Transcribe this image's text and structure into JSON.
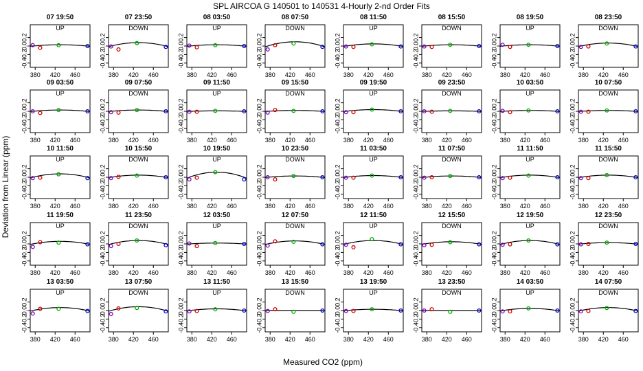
{
  "title": "SPL   AIRCOA G   140501 to 140531   4-Hourly 2-nd Order Fits",
  "colors": {
    "low": "#0000cc",
    "low2": "#8000c0",
    "mid": "#cc0000",
    "center": "#00aa00",
    "high": "#0000cc",
    "curve": "#000000"
  },
  "chart_data": {
    "type": "scatter",
    "title": "SPL   AIRCOA G   140501 to 140531   4-Hourly 2-nd Order Fits",
    "xlabel": "Measured CO2 (ppm)",
    "ylabel": "Deviation from Linear (ppm)",
    "xlim": [
      370,
      490
    ],
    "ylim": [
      -0.5,
      0.5
    ],
    "xticks": [
      "380",
      "420",
      "460"
    ],
    "yticks": [
      "0.2",
      "0.0",
      "-0.2",
      "-0.4"
    ],
    "ytick_values": [
      0.2,
      0.0,
      -0.2,
      -0.4
    ],
    "xtick_values": [
      380,
      420,
      460
    ],
    "x_standards": [
      375,
      390,
      427,
      485
    ],
    "panels": [
      {
        "label": "07 19:50",
        "dir": "UP",
        "y": [
          0.02,
          -0.04,
          0.02,
          0.0
        ],
        "c": 0.03
      },
      {
        "label": "07 23:50",
        "dir": "DOWN",
        "y": [
          -0.01,
          -0.08,
          0.07,
          -0.02
        ],
        "c": 0.08
      },
      {
        "label": "08 03:50",
        "dir": "UP",
        "y": [
          0.01,
          -0.03,
          0.02,
          0.0
        ],
        "c": 0.03
      },
      {
        "label": "08 07:50",
        "dir": "DOWN",
        "y": [
          -0.08,
          0.02,
          0.06,
          -0.02
        ],
        "c": 0.1
      },
      {
        "label": "08 11:50",
        "dir": "UP",
        "y": [
          -0.01,
          -0.02,
          0.04,
          -0.01
        ],
        "c": 0.05
      },
      {
        "label": "08 15:50",
        "dir": "DOWN",
        "y": [
          -0.01,
          -0.02,
          0.03,
          0.0
        ],
        "c": 0.03
      },
      {
        "label": "08 19:50",
        "dir": "UP",
        "y": [
          0.03,
          -0.02,
          0.03,
          0.0
        ],
        "c": 0.03
      },
      {
        "label": "08 23:50",
        "dir": "DOWN",
        "y": [
          -0.02,
          -0.01,
          0.06,
          -0.01
        ],
        "c": 0.07
      },
      {
        "label": "09 03:50",
        "dir": "UP",
        "y": [
          0.0,
          -0.04,
          0.03,
          0.0
        ],
        "c": 0.03
      },
      {
        "label": "09 07:50",
        "dir": "DOWN",
        "y": [
          -0.02,
          -0.03,
          0.03,
          0.0
        ],
        "c": 0.03
      },
      {
        "label": "09 11:50",
        "dir": "UP",
        "y": [
          -0.01,
          -0.01,
          0.01,
          0.0
        ],
        "c": 0.01
      },
      {
        "label": "09 15:50",
        "dir": "DOWN",
        "y": [
          -0.03,
          0.03,
          0.01,
          0.0
        ],
        "c": 0.02
      },
      {
        "label": "09 19:50",
        "dir": "UP",
        "y": [
          -0.02,
          -0.02,
          0.04,
          0.0
        ],
        "c": 0.04
      },
      {
        "label": "09 23:50",
        "dir": "DOWN",
        "y": [
          0.0,
          -0.01,
          0.01,
          0.0
        ],
        "c": 0.01
      },
      {
        "label": "10 03:50",
        "dir": "UP",
        "y": [
          0.01,
          -0.02,
          0.02,
          0.0
        ],
        "c": 0.02
      },
      {
        "label": "10 07:50",
        "dir": "DOWN",
        "y": [
          -0.01,
          -0.01,
          0.02,
          0.0
        ],
        "c": 0.02
      },
      {
        "label": "10 11:50",
        "dir": "UP",
        "y": [
          -0.02,
          -0.01,
          0.07,
          -0.02
        ],
        "c": 0.08
      },
      {
        "label": "10 15:50",
        "dir": "DOWN",
        "y": [
          -0.02,
          0.01,
          0.04,
          0.0
        ],
        "c": 0.05
      },
      {
        "label": "10 19:50",
        "dir": "UP",
        "y": [
          -0.05,
          -0.01,
          0.12,
          -0.05
        ],
        "c": 0.12
      },
      {
        "label": "10 23:50",
        "dir": "DOWN",
        "y": [
          0.0,
          -0.05,
          0.03,
          0.0
        ],
        "c": 0.03
      },
      {
        "label": "11 03:50",
        "dir": "UP",
        "y": [
          -0.01,
          -0.01,
          0.04,
          0.0
        ],
        "c": 0.04
      },
      {
        "label": "11 07:50",
        "dir": "DOWN",
        "y": [
          -0.01,
          0.0,
          0.03,
          0.0
        ],
        "c": 0.03
      },
      {
        "label": "11 11:50",
        "dir": "UP",
        "y": [
          -0.02,
          -0.01,
          0.04,
          0.0
        ],
        "c": 0.05
      },
      {
        "label": "11 15:50",
        "dir": "DOWN",
        "y": [
          -0.02,
          -0.02,
          0.05,
          0.0
        ],
        "c": 0.05
      },
      {
        "label": "11 19:50",
        "dir": "UP",
        "y": [
          -0.07,
          0.04,
          0.03,
          -0.01
        ],
        "c": 0.06
      },
      {
        "label": "11 23:50",
        "dir": "DOWN",
        "y": [
          -0.05,
          0.0,
          0.08,
          -0.03
        ],
        "c": 0.08
      },
      {
        "label": "12 03:50",
        "dir": "UP",
        "y": [
          0.01,
          -0.05,
          0.02,
          0.0
        ],
        "c": 0.02
      },
      {
        "label": "12 07:50",
        "dir": "DOWN",
        "y": [
          -0.04,
          0.06,
          0.05,
          -0.01
        ],
        "c": 0.07
      },
      {
        "label": "12 11:50",
        "dir": "UP",
        "y": [
          -0.02,
          -0.08,
          0.11,
          -0.01
        ],
        "c": 0.08
      },
      {
        "label": "12 15:50",
        "dir": "DOWN",
        "y": [
          -0.03,
          -0.02,
          0.04,
          -0.01
        ],
        "c": 0.05
      },
      {
        "label": "12 19:50",
        "dir": "UP",
        "y": [
          -0.02,
          -0.01,
          0.08,
          -0.01
        ],
        "c": 0.08
      },
      {
        "label": "12 23:50",
        "dir": "DOWN",
        "y": [
          -0.01,
          0.0,
          0.03,
          0.0
        ],
        "c": 0.03
      },
      {
        "label": "13 03:50",
        "dir": "UP",
        "y": [
          -0.07,
          0.04,
          0.04,
          -0.01
        ],
        "c": 0.07
      },
      {
        "label": "13 07:50",
        "dir": "DOWN",
        "y": [
          -0.08,
          0.05,
          0.06,
          -0.02
        ],
        "c": 0.09
      },
      {
        "label": "13 11:50",
        "dir": "UP",
        "y": [
          -0.02,
          -0.01,
          0.03,
          0.0
        ],
        "c": 0.04
      },
      {
        "label": "13 15:50",
        "dir": "DOWN",
        "y": [
          -0.01,
          0.03,
          -0.03,
          0.0
        ],
        "c": 0.0
      },
      {
        "label": "13 19:50",
        "dir": "UP",
        "y": [
          -0.01,
          -0.01,
          0.03,
          0.0
        ],
        "c": 0.03
      },
      {
        "label": "13 23:50",
        "dir": "DOWN",
        "y": [
          0.0,
          0.03,
          -0.03,
          0.0
        ],
        "c": 0.0
      },
      {
        "label": "14 03:50",
        "dir": "UP",
        "y": [
          -0.02,
          -0.02,
          0.05,
          0.0
        ],
        "c": 0.05
      },
      {
        "label": "14 07:50",
        "dir": "DOWN",
        "y": [
          -0.02,
          -0.01,
          0.06,
          -0.01
        ],
        "c": 0.07
      }
    ]
  }
}
